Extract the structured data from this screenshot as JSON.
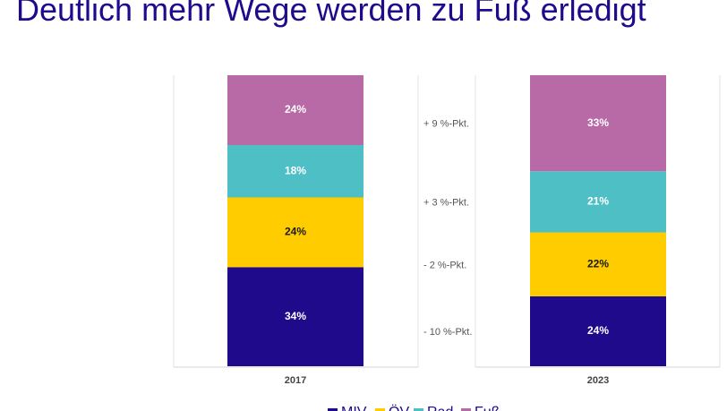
{
  "title": "Deutlich mehr Wege werden zu Fuß erledigt",
  "chart_data": {
    "type": "bar",
    "stacked": true,
    "categories": [
      "2017",
      "2023"
    ],
    "series": [
      {
        "name": "MIV",
        "color": "#1f0a8c",
        "values": [
          34,
          24
        ]
      },
      {
        "name": "ÖV",
        "color": "#ffcc00",
        "values": [
          24,
          22
        ]
      },
      {
        "name": "Rad",
        "color": "#4fbfc6",
        "values": [
          18,
          21
        ]
      },
      {
        "name": "Fuß",
        "color": "#b86aa6",
        "values": [
          24,
          33
        ]
      }
    ],
    "value_suffix": "%",
    "differences": [
      "- 10 %-Pkt.",
      "- 2 %-Pkt.",
      "+ 3 %-Pkt.",
      "+ 9 %-Pkt."
    ],
    "legend_position": "bottom",
    "grid": false
  }
}
